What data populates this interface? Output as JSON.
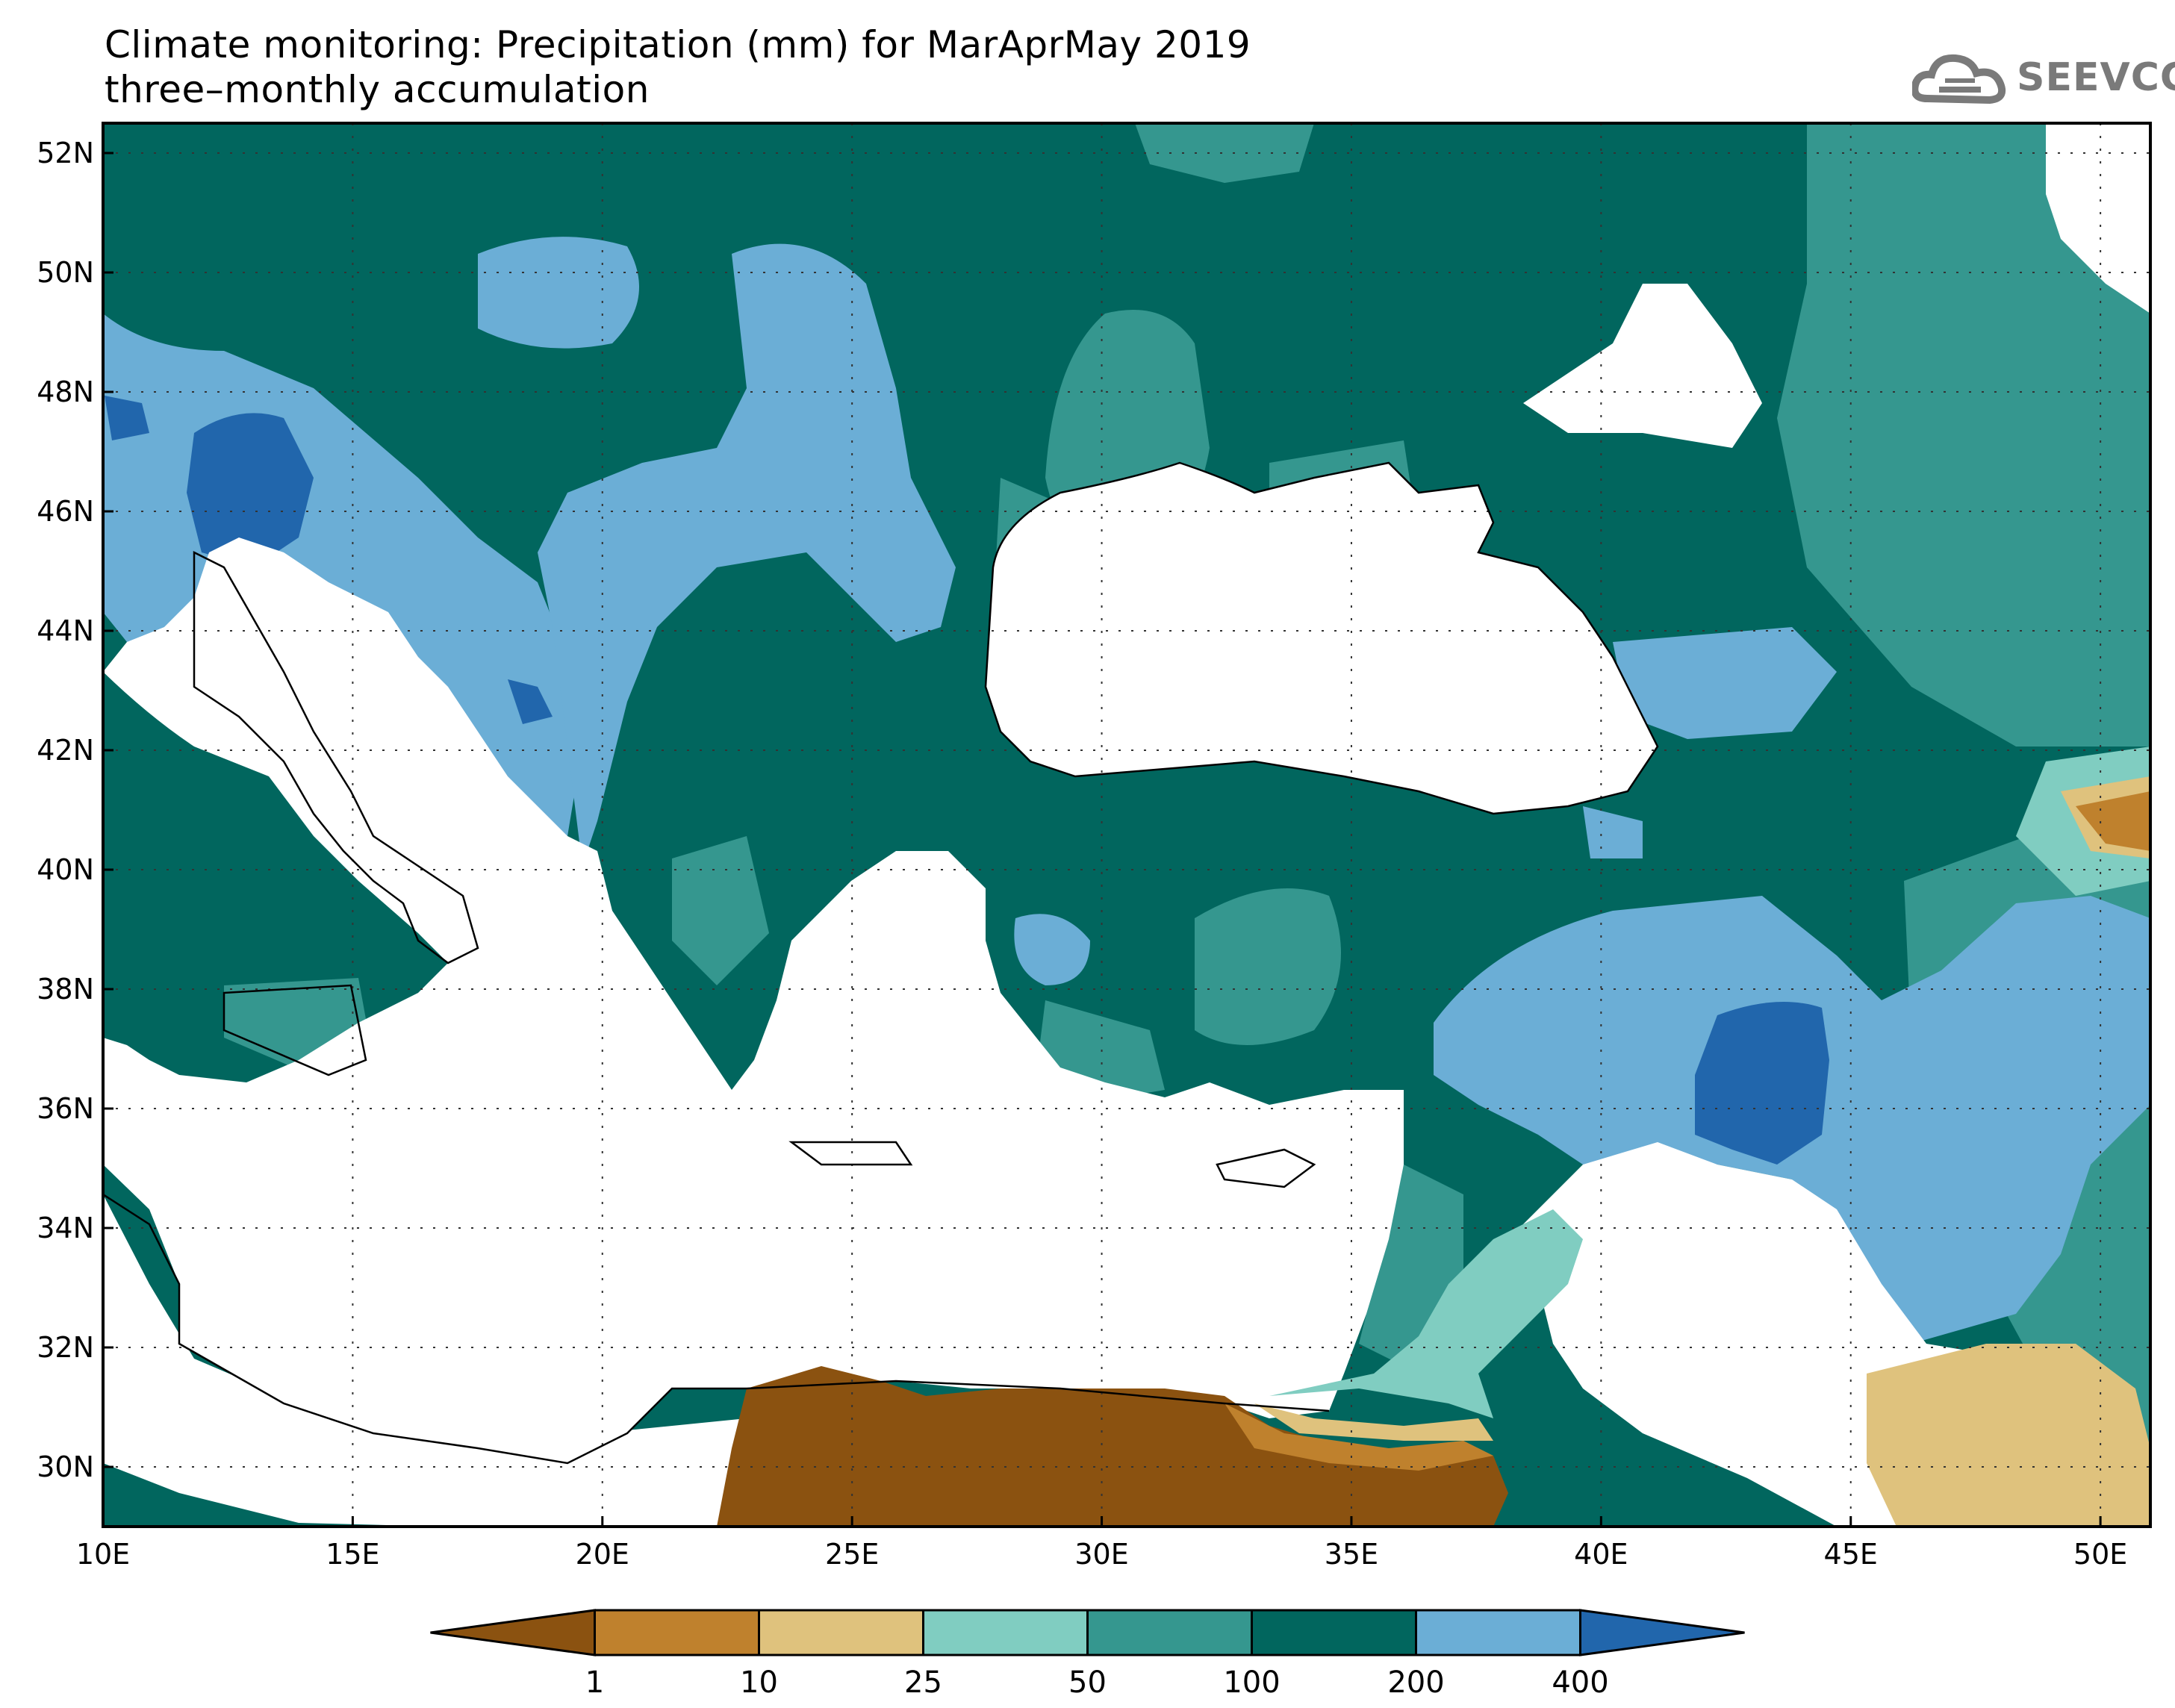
{
  "title": {
    "line1": "Climate monitoring: Precipitation (mm) for MarAprMay 2019",
    "line2": "three–monthly accumulation"
  },
  "logo": {
    "text": "SEEVCCC",
    "icon": "cloud-icon"
  },
  "map": {
    "lon_range": [
      10,
      51
    ],
    "lat_range": [
      29,
      52.5
    ],
    "lon_ticks": [
      "10E",
      "15E",
      "20E",
      "25E",
      "30E",
      "35E",
      "40E",
      "45E",
      "50E"
    ],
    "lat_ticks": [
      "52N",
      "50N",
      "48N",
      "46N",
      "44N",
      "42N",
      "40N",
      "38N",
      "36N",
      "34N",
      "32N",
      "30N"
    ],
    "grid": true,
    "stations_shown": true
  },
  "colorbar": {
    "unit": "mm",
    "thresholds": [
      "1",
      "10",
      "25",
      "50",
      "100",
      "200",
      "400"
    ],
    "colors": [
      "#8b5210",
      "#bf812d",
      "#dfc27d",
      "#80cdc1",
      "#35978f",
      "#01665e",
      "#6baed6",
      "#2166ac"
    ]
  }
}
